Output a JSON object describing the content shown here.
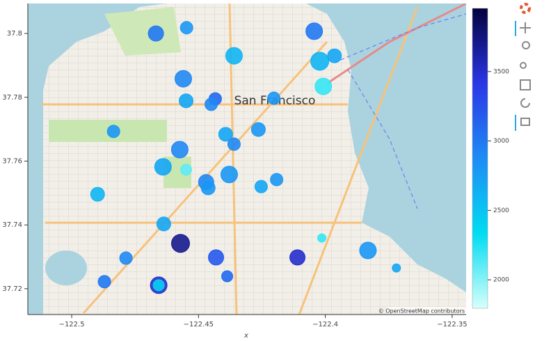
{
  "chart_data": {
    "type": "scatter",
    "x_label": "x",
    "map_label": "San Francisco",
    "attribution": "© OpenStreetMap contributors",
    "xlim": [
      -122.5173,
      -122.3445
    ],
    "ylim": [
      37.7119,
      37.8094
    ],
    "xticks": [
      {
        "value": -122.5,
        "label": "−122.5"
      },
      {
        "value": -122.45,
        "label": "−122.45"
      },
      {
        "value": -122.4,
        "label": "−122.4"
      },
      {
        "value": -122.35,
        "label": "−122.35"
      }
    ],
    "yticks": [
      37.72,
      37.74,
      37.76,
      37.78,
      37.8
    ],
    "cmap": [
      "#d8fffb",
      "#00dcf2",
      "#1e8cf5",
      "#2b36e6",
      "#03013d"
    ],
    "clim": [
      1795,
      3955
    ],
    "cticks": [
      2000,
      2500,
      3000,
      3500
    ],
    "x": [
      -122.4668,
      -122.4547,
      -122.436,
      -122.4044,
      -122.4022,
      -122.3964,
      -122.4008,
      -122.456,
      -122.4549,
      -122.4434,
      -122.445,
      -122.4203,
      -122.4835,
      -122.4264,
      -122.4393,
      -122.436,
      -122.4574,
      -122.464,
      -122.4549,
      -122.4379,
      -122.447,
      -122.4462,
      -122.4192,
      -122.4253,
      -122.4898,
      -122.4637,
      -122.4571,
      -122.4014,
      -122.3832,
      -122.4786,
      -122.4431,
      -122.411,
      -122.4871,
      -122.4387,
      -122.4657,
      -122.4657,
      -122.372
    ],
    "y": [
      37.8,
      37.8018,
      37.793,
      37.8007,
      37.7913,
      37.793,
      37.7834,
      37.7858,
      37.7789,
      37.7795,
      37.7778,
      37.7797,
      37.7693,
      37.7699,
      37.7684,
      37.7653,
      37.7636,
      37.7582,
      37.7573,
      37.7558,
      37.7534,
      37.7516,
      37.7542,
      37.752,
      37.7496,
      37.7403,
      37.7342,
      37.7359,
      37.732,
      37.7296,
      37.7298,
      37.7298,
      37.7222,
      37.7239,
      37.7211,
      37.7211,
      37.7265
    ],
    "values": [
      3000,
      2800,
      2600,
      3000,
      2600,
      2700,
      2200,
      2900,
      2700,
      3100,
      2900,
      2800,
      2800,
      2800,
      2700,
      2900,
      2900,
      2700,
      2100,
      2800,
      2900,
      2800,
      2800,
      2700,
      2600,
      2700,
      3700,
      2200,
      2800,
      2900,
      3200,
      3500,
      3000,
      3100,
      3500,
      2400,
      2700
    ],
    "sizes": [
      11,
      9,
      12,
      12,
      13,
      10,
      12,
      12,
      10,
      9,
      9,
      9,
      9,
      10,
      10,
      9,
      12,
      12,
      8,
      12,
      11,
      10,
      9,
      9,
      10,
      10,
      13,
      6,
      12,
      9,
      11,
      11,
      9,
      8,
      12,
      8,
      6
    ]
  }
}
